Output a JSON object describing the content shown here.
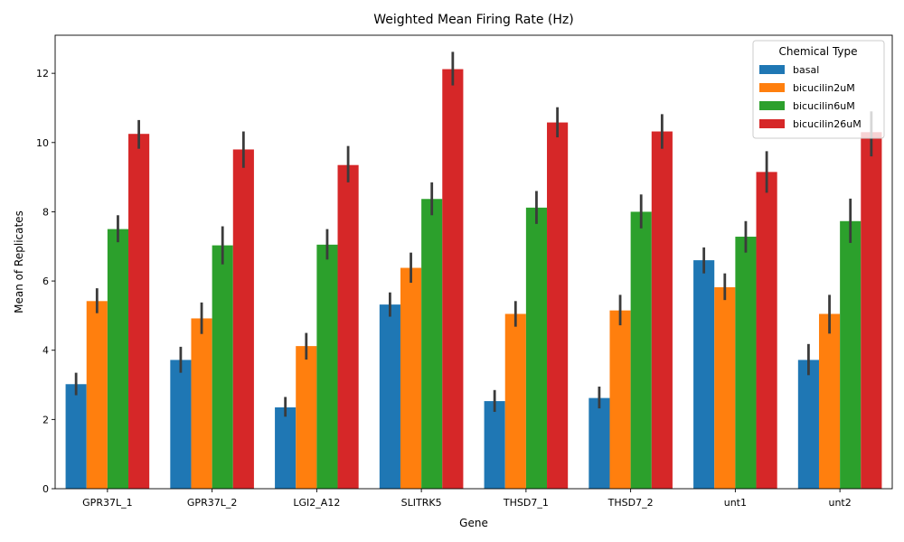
{
  "chart_data": {
    "type": "bar",
    "title": "Weighted Mean Firing Rate (Hz)",
    "xlabel": "Gene",
    "ylabel": "Mean of Replicates",
    "ylim": [
      0,
      13.1
    ],
    "yticks": [
      0,
      2,
      4,
      6,
      8,
      10,
      12
    ],
    "grid": false,
    "legend": {
      "title": "Chemical Type",
      "placement": "top-right"
    },
    "categories": [
      "GPR37L_1",
      "GPR37L_2",
      "LGI2_A12",
      "SLITRK5",
      "THSD7_1",
      "THSD7_2",
      "unt1",
      "unt2"
    ],
    "series": [
      {
        "name": "basal",
        "color": "#1f77b4",
        "values": [
          3.02,
          3.72,
          2.35,
          5.32,
          2.53,
          2.62,
          6.6,
          3.72
        ],
        "error_low": [
          2.7,
          3.35,
          2.08,
          4.97,
          2.22,
          2.32,
          6.22,
          3.28
        ],
        "error_high": [
          3.35,
          4.1,
          2.65,
          5.67,
          2.85,
          2.95,
          6.97,
          4.18
        ]
      },
      {
        "name": "bicucilin2uM",
        "color": "#ff7f0e",
        "values": [
          5.42,
          4.92,
          4.12,
          6.38,
          5.05,
          5.15,
          5.82,
          5.05
        ],
        "error_low": [
          5.07,
          4.47,
          3.73,
          5.95,
          4.68,
          4.72,
          5.45,
          4.48
        ],
        "error_high": [
          5.79,
          5.38,
          4.5,
          6.82,
          5.42,
          5.6,
          6.22,
          5.6
        ]
      },
      {
        "name": "bicucilin6uM",
        "color": "#2ca02c",
        "values": [
          7.5,
          7.03,
          7.05,
          8.37,
          8.12,
          8.0,
          7.28,
          7.73
        ],
        "error_low": [
          7.12,
          6.48,
          6.62,
          7.9,
          7.65,
          7.52,
          6.82,
          7.1
        ],
        "error_high": [
          7.9,
          7.58,
          7.5,
          8.85,
          8.6,
          8.5,
          7.73,
          8.38
        ]
      },
      {
        "name": "bicucilin26uM",
        "color": "#d62728",
        "values": [
          10.25,
          9.8,
          9.35,
          12.12,
          10.58,
          10.32,
          9.15,
          10.3
        ],
        "error_low": [
          9.82,
          9.27,
          8.85,
          11.65,
          10.15,
          9.82,
          8.55,
          9.6
        ],
        "error_high": [
          10.65,
          10.32,
          9.9,
          12.62,
          11.02,
          10.82,
          9.75,
          10.9
        ]
      }
    ]
  }
}
